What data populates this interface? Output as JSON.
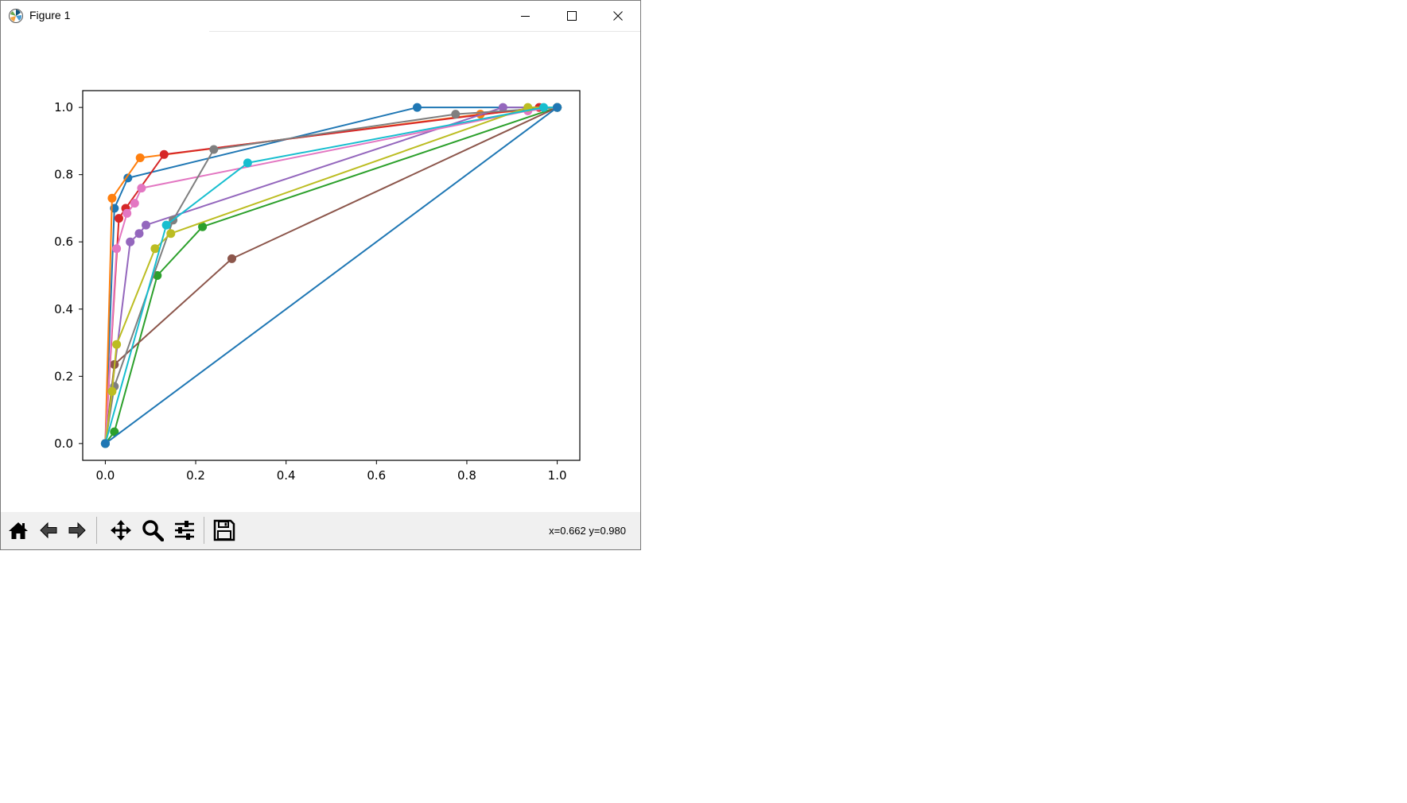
{
  "window": {
    "title": "Figure 1",
    "controls": [
      "minimize-icon",
      "maximize-icon",
      "close-icon"
    ]
  },
  "toolbar": {
    "buttons": [
      "home-icon",
      "back-icon",
      "forward-icon",
      "pan-icon",
      "zoom-icon",
      "configure-subplots-icon",
      "save-icon"
    ],
    "coords_text": "x=0.662 y=0.980"
  },
  "chart_data": {
    "type": "line",
    "title": "",
    "xlabel": "",
    "ylabel": "",
    "xlim": [
      -0.05,
      1.05
    ],
    "ylim": [
      -0.05,
      1.05
    ],
    "xticks": [
      "0.0",
      "0.2",
      "0.4",
      "0.6",
      "0.8",
      "1.0"
    ],
    "yticks": [
      "0.0",
      "0.2",
      "0.4",
      "0.6",
      "0.8",
      "1.0"
    ],
    "grid": false,
    "markers": "circle",
    "series": [
      {
        "color": "#1f77b4",
        "x": [
          0,
          0.02,
          0.05,
          0.69,
          1.0
        ],
        "y": [
          0,
          0.7,
          0.79,
          1.0,
          1.0
        ]
      },
      {
        "color": "#ff7f0e",
        "x": [
          0,
          0.015,
          0.077,
          0.83,
          1.0
        ],
        "y": [
          0,
          0.73,
          0.85,
          0.98,
          1.0
        ]
      },
      {
        "color": "#2ca02c",
        "x": [
          0,
          0.02,
          0.115,
          0.215,
          1.0
        ],
        "y": [
          0,
          0.035,
          0.5,
          0.645,
          1.0
        ]
      },
      {
        "color": "#d62728",
        "x": [
          0,
          0.03,
          0.045,
          0.13,
          0.96,
          1.0
        ],
        "y": [
          0,
          0.67,
          0.7,
          0.86,
          1.0,
          1.0
        ]
      },
      {
        "color": "#9467bd",
        "x": [
          0,
          0.055,
          0.075,
          0.09,
          0.88,
          1.0
        ],
        "y": [
          0,
          0.6,
          0.625,
          0.65,
          1.0,
          1.0
        ]
      },
      {
        "color": "#8c564b",
        "x": [
          0,
          0.02,
          0.28,
          1.0
        ],
        "y": [
          0,
          0.235,
          0.55,
          1.0
        ]
      },
      {
        "color": "#e377c2",
        "x": [
          0,
          0.025,
          0.048,
          0.065,
          0.08,
          0.935,
          1.0
        ],
        "y": [
          0,
          0.58,
          0.685,
          0.715,
          0.76,
          0.99,
          1.0
        ]
      },
      {
        "color": "#7f7f7f",
        "x": [
          0,
          0.02,
          0.15,
          0.24,
          0.775,
          1.0
        ],
        "y": [
          0,
          0.17,
          0.665,
          0.875,
          0.98,
          1.0
        ]
      },
      {
        "color": "#bcbd22",
        "x": [
          0,
          0.015,
          0.025,
          0.11,
          0.145,
          0.935,
          1.0
        ],
        "y": [
          0,
          0.155,
          0.295,
          0.58,
          0.625,
          1.0,
          1.0
        ]
      },
      {
        "color": "#17becf",
        "x": [
          0,
          0.135,
          0.315,
          0.97,
          1.0
        ],
        "y": [
          0,
          0.65,
          0.835,
          1.0,
          1.0
        ]
      },
      {
        "color": "#1f77b4",
        "x": [
          0,
          1.0
        ],
        "y": [
          0,
          1.0
        ]
      }
    ]
  }
}
